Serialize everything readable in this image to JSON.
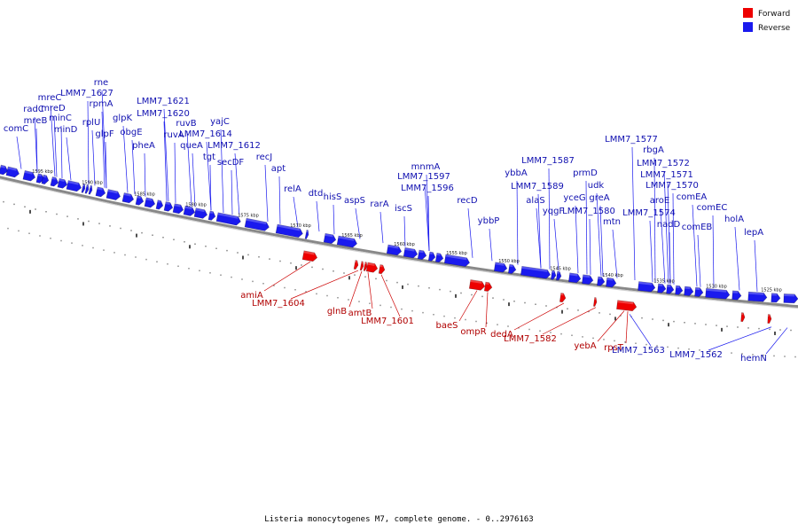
{
  "legend": {
    "forward_label": "Forward",
    "reverse_label": "Reverse",
    "forward_color": "#ee0000",
    "reverse_color": "#1a1aee"
  },
  "caption": "Listeria monocytogenes M7, complete genome. - 0..2976163",
  "colors": {
    "reverse": "#1a1aee",
    "forward": "#ee0000",
    "backbone": "#999999"
  },
  "kbp_marks": [
    "1595 kbp",
    "1590 kbp",
    "1585 kbp",
    "1580 kbp",
    "1575 kbp",
    "1570 kbp",
    "1565 kbp",
    "1560 kbp",
    "1555 kbp",
    "1550 kbp",
    "1545 kbp",
    "1540 kbp",
    "1535 kbp",
    "1530 kbp",
    "1525 kbp"
  ],
  "reverse_genes": [
    "comC",
    "radC",
    "mreB",
    "mreC",
    "mreD",
    "minC",
    "minD",
    "rplU",
    "LMM7_1627",
    "rne",
    "rpmA",
    "glpF",
    "glpK",
    "obgE",
    "pheA",
    "LMM7_1621",
    "LMM7_1620",
    "ruvA",
    "ruvB",
    "queA",
    "tgt",
    "LMM7_1614",
    "yajC",
    "secDF",
    "LMM7_1612",
    "recJ",
    "apt",
    "relA",
    "dtd",
    "hisS",
    "aspS",
    "rarA",
    "iscS",
    "LMM7_1597",
    "mnmA",
    "LMM7_1596",
    "recD",
    "ybbP",
    "ybbA",
    "alaS",
    "LMM7_1589",
    "LMM7_1587",
    "yqgF",
    "yceG",
    "prmD",
    "udk",
    "greA",
    "LMM7_1580",
    "mtn",
    "LMM7_1577",
    "rbgA",
    "aroE",
    "LMM7_1574",
    "nadD",
    "LMM7_1572",
    "LMM7_1571",
    "LMM7_1570",
    "comEA",
    "comEB",
    "comEC",
    "holA",
    "lepA"
  ],
  "forward_genes": [
    "amiA",
    "LMM7_1604",
    "glnB",
    "amtB",
    "LMM7_1601",
    "baeS",
    "ompR",
    "dedA",
    "LMM7_1582",
    "yebA",
    "rpsT",
    "LMM7_1563",
    "LMM7_1562",
    "hemN"
  ]
}
